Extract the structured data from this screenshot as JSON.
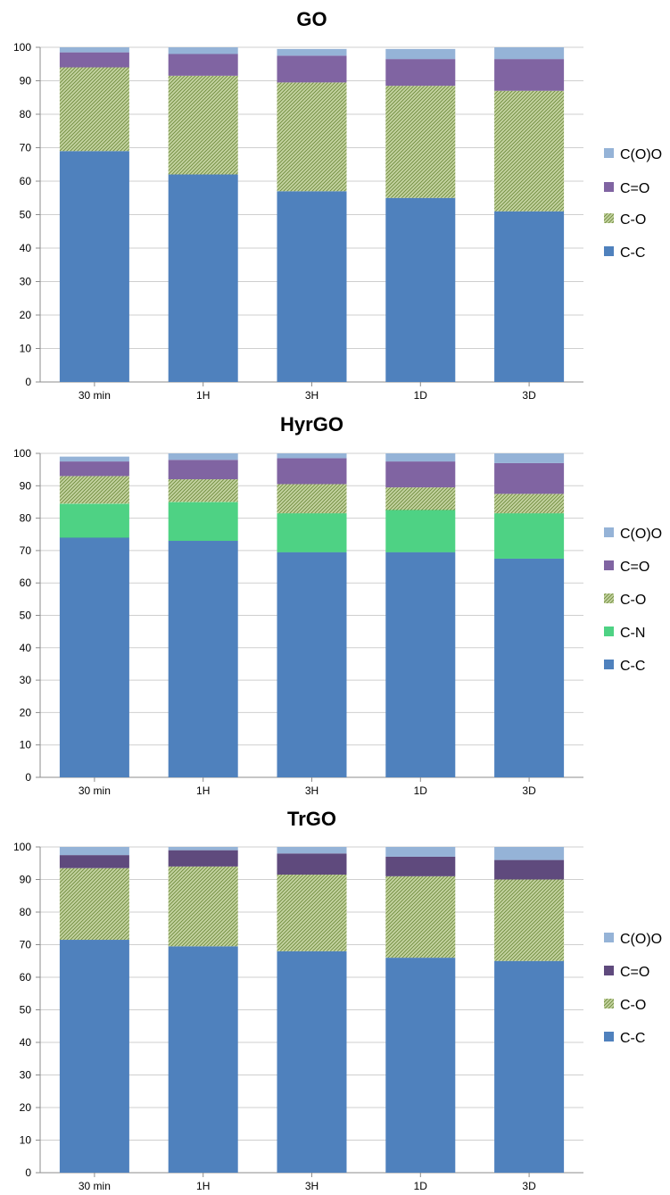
{
  "colors": {
    "c_c": "#4f81bd",
    "c_o": "#c4d3a0",
    "c_o_stripe": "#6e8a3c",
    "c_eq_o_go": "#8064a2",
    "c_eq_o_tr": "#5f4a7d",
    "c_o_o": "#95b3d7",
    "c_n": "#1fc061",
    "c_n_stripe": "#9bf0bd"
  },
  "chart_data": [
    {
      "type": "bar",
      "stacked": true,
      "title": "GO",
      "categories": [
        "30 min",
        "1H",
        "3H",
        "1D",
        "3D"
      ],
      "ylim": [
        0,
        100
      ],
      "yticks": [
        0,
        10,
        20,
        30,
        40,
        50,
        60,
        70,
        80,
        90,
        100
      ],
      "grid": true,
      "legend_position": "right",
      "series": [
        {
          "name": "C-C",
          "key": "c_c",
          "values": [
            69,
            62,
            57,
            55,
            51
          ]
        },
        {
          "name": "C-O",
          "key": "c_o",
          "values": [
            25,
            29.5,
            32.5,
            33.5,
            36
          ]
        },
        {
          "name": "C=O",
          "key": "c_eq_o_go",
          "values": [
            4.5,
            6.5,
            8,
            8,
            9.5
          ]
        },
        {
          "name": "C(O)O",
          "key": "c_o_o",
          "values": [
            1.5,
            2,
            2,
            3,
            3.5
          ]
        }
      ]
    },
    {
      "type": "bar",
      "stacked": true,
      "title": "HyrGO",
      "categories": [
        "30 min",
        "1H",
        "3H",
        "1D",
        "3D"
      ],
      "ylim": [
        0,
        100
      ],
      "yticks": [
        0,
        10,
        20,
        30,
        40,
        50,
        60,
        70,
        80,
        90,
        100
      ],
      "grid": true,
      "legend_position": "right",
      "series": [
        {
          "name": "C-C",
          "key": "c_c",
          "values": [
            74,
            73,
            69.5,
            69.5,
            67.5
          ]
        },
        {
          "name": "C-N",
          "key": "c_n",
          "values": [
            10.5,
            12,
            12,
            13,
            14
          ]
        },
        {
          "name": "C-O",
          "key": "c_o",
          "values": [
            8.5,
            7,
            9,
            7,
            6
          ]
        },
        {
          "name": "C=O",
          "key": "c_eq_o_go",
          "values": [
            4.5,
            6,
            8,
            8,
            9.5
          ]
        },
        {
          "name": "C(O)O",
          "key": "c_o_o",
          "values": [
            1.5,
            2,
            1.5,
            2.5,
            3
          ]
        }
      ]
    },
    {
      "type": "bar",
      "stacked": true,
      "title": "TrGO",
      "categories": [
        "30 min",
        "1H",
        "3H",
        "1D",
        "3D"
      ],
      "ylim": [
        0,
        100
      ],
      "yticks": [
        0,
        10,
        20,
        30,
        40,
        50,
        60,
        70,
        80,
        90,
        100
      ],
      "grid": true,
      "legend_position": "right",
      "series": [
        {
          "name": "C-C",
          "key": "c_c",
          "values": [
            71.5,
            69.5,
            68,
            66,
            65
          ]
        },
        {
          "name": "C-O",
          "key": "c_o",
          "values": [
            22,
            24.5,
            23.5,
            25,
            25
          ]
        },
        {
          "name": "C=O",
          "key": "c_eq_o_tr",
          "values": [
            4,
            5,
            6.5,
            6,
            6
          ]
        },
        {
          "name": "C(O)O",
          "key": "c_o_o",
          "values": [
            2.5,
            1,
            2,
            3,
            4
          ]
        }
      ]
    }
  ]
}
